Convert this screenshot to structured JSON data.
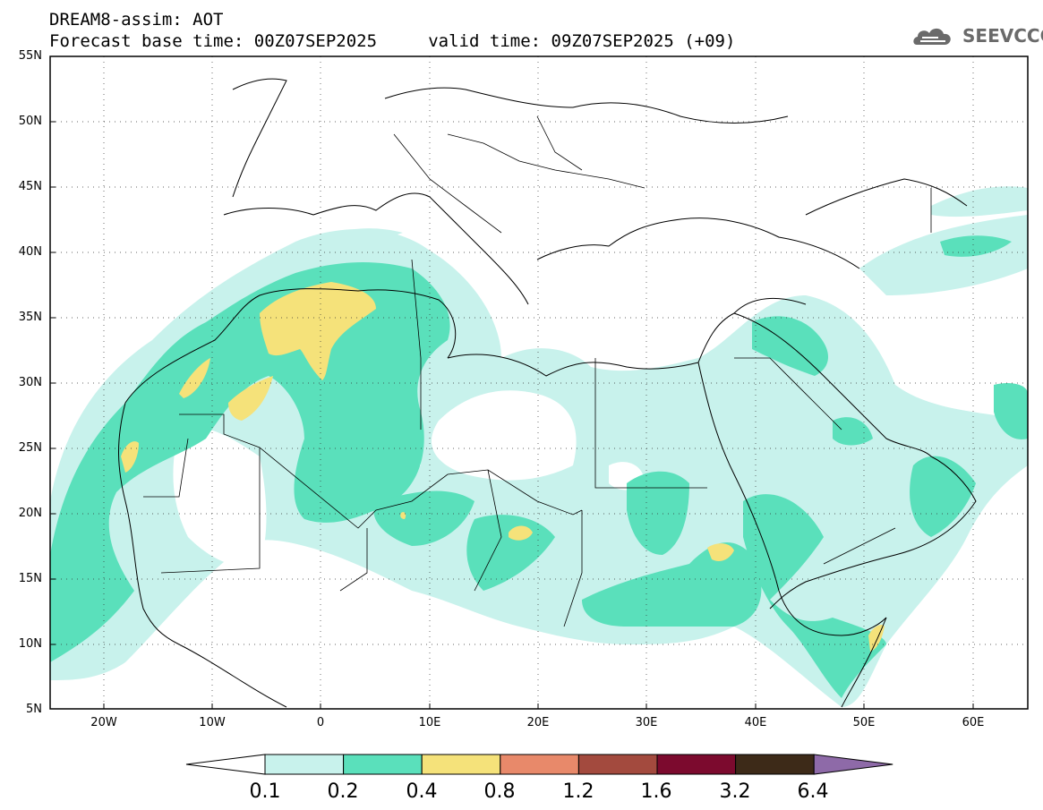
{
  "header": {
    "line1": "DREAM8-assim: AOT",
    "line2": "Forecast base time: 00Z07SEP2025     valid time: 09Z07SEP2025 (+09)"
  },
  "logo": {
    "text": "SEEVCCC",
    "icon": "cloud-logo-icon",
    "color": "#6a6a6a"
  },
  "map": {
    "variable": "AOT",
    "lat_labels": [
      "55N",
      "50N",
      "45N",
      "40N",
      "35N",
      "30N",
      "25N",
      "20N",
      "15N",
      "10N",
      "5N"
    ],
    "lon_labels": [
      "20W",
      "10W",
      "0",
      "10E",
      "20E",
      "30E",
      "40E",
      "50E",
      "60E"
    ],
    "lat_range": [
      5,
      55
    ],
    "lon_range": [
      -25,
      65
    ],
    "grid": "dotted"
  },
  "colorbar": {
    "levels": [
      "0.1",
      "0.2",
      "0.4",
      "0.8",
      "1.2",
      "1.6",
      "3.2",
      "6.4"
    ],
    "colors": [
      "#ffffff",
      "#c8f2ec",
      "#5ae0bb",
      "#f5e27a",
      "#e8896a",
      "#a34a3e",
      "#7c0a2e",
      "#3d2a18",
      "#8e6aa8"
    ]
  },
  "legend_colors": {
    "low": "#c8f2ec",
    "mid": "#5ae0bb",
    "high": "#f5e27a"
  }
}
